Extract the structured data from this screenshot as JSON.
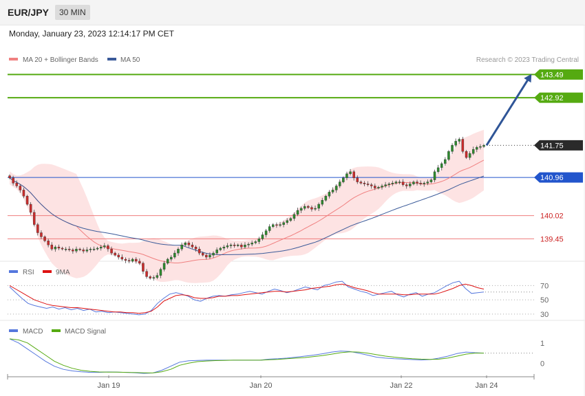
{
  "header": {
    "symbol": "EUR/JPY",
    "interval": "30 MIN"
  },
  "datetime": "Monday, January 23, 2023 12:14:17 PM CET",
  "credit": "Research © 2023 Trading Central",
  "colors": {
    "candle_up": "#2e8b2e",
    "candle_down": "#cc2b2b",
    "bollinger_fill": "#fde3e3",
    "ma20": "#f08080",
    "ma50": "#3a5a99",
    "target_line": "#55aa11",
    "support_line": "#ef7b7b",
    "pivot_line": "#2255cc",
    "arrow": "#2f5597",
    "rsi": "#5577dd",
    "rsi_ma": "#dd1111",
    "macd": "#5577dd",
    "macd_signal": "#55aa11"
  },
  "chart_data": [
    {
      "type": "candlestick",
      "panel": "price",
      "legend": [
        {
          "name": "MA 20 + Bollinger Bands",
          "color": "#f08080"
        },
        {
          "name": "MA 50",
          "color": "#3a5a99"
        }
      ],
      "x_ticks": [
        "Jan 19",
        "Jan 20",
        "Jan 22",
        "Jan 24"
      ],
      "ylim": [
        139.0,
        143.7
      ],
      "levels": [
        {
          "value": 143.49,
          "label": "143.49",
          "kind": "target"
        },
        {
          "value": 142.92,
          "label": "142.92",
          "kind": "target"
        },
        {
          "value": 141.75,
          "label": "141.75",
          "kind": "last"
        },
        {
          "value": 140.96,
          "label": "140.96",
          "kind": "pivot"
        },
        {
          "value": 140.02,
          "label": "140.02",
          "kind": "support"
        },
        {
          "value": 139.45,
          "label": "139.45",
          "kind": "support"
        }
      ],
      "close": [
        140.95,
        140.82,
        140.75,
        140.65,
        140.5,
        140.3,
        140.1,
        139.8,
        139.6,
        139.5,
        139.4,
        139.3,
        139.2,
        139.25,
        139.22,
        139.2,
        139.2,
        139.18,
        139.15,
        139.2,
        139.18,
        139.15,
        139.18,
        139.2,
        139.2,
        139.22,
        139.25,
        139.28,
        139.2,
        139.1,
        139.05,
        139.0,
        138.95,
        138.92,
        138.9,
        138.95,
        138.9,
        138.85,
        138.65,
        138.52,
        138.48,
        138.5,
        138.55,
        138.7,
        138.85,
        138.95,
        139.0,
        139.1,
        139.2,
        139.3,
        139.35,
        139.3,
        139.25,
        139.2,
        139.1,
        139.05,
        139.0,
        139.05,
        139.1,
        139.18,
        139.22,
        139.25,
        139.28,
        139.3,
        139.28,
        139.3,
        139.25,
        139.3,
        139.32,
        139.35,
        139.38,
        139.45,
        139.55,
        139.65,
        139.75,
        139.8,
        139.78,
        139.8,
        139.85,
        139.9,
        139.95,
        140.05,
        140.15,
        140.2,
        140.25,
        140.22,
        140.18,
        140.2,
        140.3,
        140.4,
        140.5,
        140.6,
        140.65,
        140.75,
        140.85,
        140.95,
        141.05,
        141.1,
        140.95,
        140.85,
        140.82,
        140.8,
        140.78,
        140.75,
        140.7,
        140.72,
        140.75,
        140.78,
        140.8,
        140.82,
        140.85,
        140.85,
        140.78,
        140.75,
        140.8,
        140.85,
        140.82,
        140.8,
        140.82,
        140.85,
        140.9,
        141.1,
        141.2,
        141.3,
        141.4,
        141.6,
        141.75,
        141.85,
        141.9,
        141.6,
        141.45,
        141.55,
        141.65,
        141.7,
        141.72,
        141.75
      ]
    },
    {
      "type": "line",
      "panel": "rsi",
      "legend": [
        {
          "name": "RSI",
          "color": "#5577dd"
        },
        {
          "name": "9MA",
          "color": "#dd1111"
        }
      ],
      "ylim": [
        25,
        80
      ],
      "y_ticks": [
        70,
        50,
        30
      ],
      "series": [
        {
          "name": "RSI",
          "values": [
            68,
            60,
            52,
            45,
            42,
            40,
            38,
            40,
            37,
            39,
            36,
            38,
            35,
            37,
            33,
            34,
            32,
            33,
            32,
            31,
            30,
            29,
            30,
            35,
            45,
            52,
            58,
            60,
            58,
            55,
            50,
            48,
            52,
            55,
            56,
            55,
            57,
            58,
            60,
            62,
            60,
            58,
            62,
            65,
            63,
            60,
            62,
            65,
            68,
            66,
            64,
            70,
            72,
            75,
            76,
            68,
            65,
            62,
            60,
            56,
            58,
            60,
            62,
            57,
            54,
            58,
            60,
            55,
            58,
            60,
            65,
            70,
            74,
            76,
            66,
            59,
            60,
            61
          ]
        },
        {
          "name": "9MA",
          "values": [
            70,
            65,
            60,
            55,
            50,
            47,
            44,
            42,
            41,
            40,
            39,
            39,
            38,
            37,
            36,
            35,
            34,
            33,
            33,
            32,
            32,
            31,
            32,
            34,
            40,
            48,
            52,
            56,
            57,
            56,
            53,
            52,
            52,
            53,
            55,
            55,
            56,
            56,
            57,
            58,
            59,
            60,
            61,
            62,
            62,
            61,
            62,
            63,
            64,
            66,
            67,
            68,
            69,
            71,
            72,
            70,
            67,
            65,
            63,
            60,
            58,
            58,
            58,
            58,
            57,
            57,
            58,
            58,
            58,
            58,
            60,
            63,
            66,
            70,
            72,
            70,
            67,
            65
          ]
        }
      ]
    },
    {
      "type": "line",
      "panel": "macd",
      "legend": [
        {
          "name": "MACD",
          "color": "#5577dd"
        },
        {
          "name": "MACD Signal",
          "color": "#55aa11"
        }
      ],
      "ylim": [
        -0.6,
        1.3
      ],
      "y_ticks": [
        1,
        0
      ],
      "series": [
        {
          "name": "MACD",
          "values": [
            1.2,
            1.0,
            0.7,
            0.4,
            0.1,
            -0.15,
            -0.3,
            -0.38,
            -0.42,
            -0.45,
            -0.45,
            -0.43,
            -0.44,
            -0.45,
            -0.47,
            -0.5,
            -0.48,
            -0.35,
            -0.15,
            0.05,
            0.12,
            0.14,
            0.15,
            0.15,
            0.15,
            0.15,
            0.15,
            0.15,
            0.15,
            0.2,
            0.22,
            0.25,
            0.3,
            0.35,
            0.4,
            0.47,
            0.55,
            0.6,
            0.58,
            0.5,
            0.4,
            0.3,
            0.25,
            0.22,
            0.2,
            0.18,
            0.16,
            0.18,
            0.25,
            0.35,
            0.48,
            0.55,
            0.52,
            0.5
          ]
        },
        {
          "name": "MACD Signal",
          "values": [
            1.2,
            1.15,
            1.0,
            0.7,
            0.4,
            0.1,
            -0.1,
            -0.25,
            -0.35,
            -0.4,
            -0.43,
            -0.44,
            -0.44,
            -0.45,
            -0.46,
            -0.47,
            -0.48,
            -0.42,
            -0.3,
            -0.1,
            0.0,
            0.08,
            0.11,
            0.13,
            0.14,
            0.15,
            0.15,
            0.15,
            0.15,
            0.17,
            0.19,
            0.22,
            0.25,
            0.28,
            0.33,
            0.38,
            0.45,
            0.52,
            0.56,
            0.55,
            0.5,
            0.42,
            0.35,
            0.3,
            0.26,
            0.22,
            0.2,
            0.19,
            0.2,
            0.26,
            0.35,
            0.45,
            0.5,
            0.5
          ]
        }
      ]
    }
  ]
}
